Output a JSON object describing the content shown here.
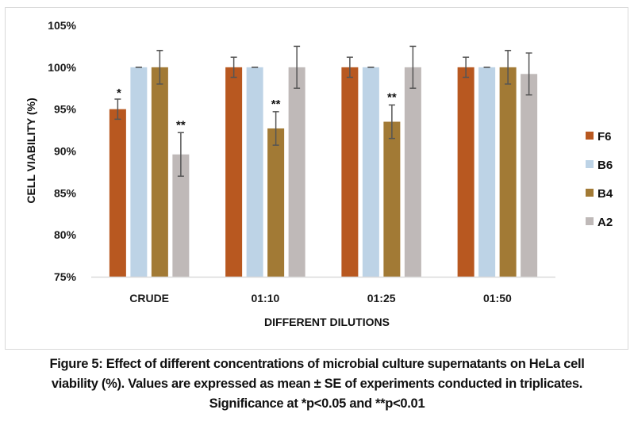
{
  "chart_data": {
    "type": "bar",
    "title": "",
    "xlabel": "DIFFERENT DILUTIONS",
    "ylabel": "CELL VIABILITY (%)",
    "ylim": [
      75,
      105
    ],
    "yticks": [
      75,
      80,
      85,
      90,
      95,
      100,
      105
    ],
    "ytick_labels": [
      "75%",
      "80%",
      "85%",
      "90%",
      "95%",
      "100%",
      "105%"
    ],
    "categories": [
      "CRUDE",
      "01:10",
      "01:25",
      "01:50"
    ],
    "grid": false,
    "legend_position": "right",
    "series": [
      {
        "name": "F6",
        "color": "#B85820",
        "values": [
          95.0,
          100.0,
          100.0,
          100.0
        ],
        "errors": [
          1.2,
          1.2,
          1.2,
          1.2
        ],
        "significance": [
          "*",
          "",
          "",
          ""
        ]
      },
      {
        "name": "B6",
        "color": "#BDD3E6",
        "values": [
          100.0,
          100.0,
          100.0,
          100.0
        ],
        "errors": [
          0,
          0,
          0,
          0
        ],
        "significance": [
          "",
          "",
          "",
          ""
        ]
      },
      {
        "name": "B4",
        "color": "#A27A35",
        "values": [
          100.0,
          92.7,
          93.5,
          100.0
        ],
        "errors": [
          2.0,
          2.0,
          2.0,
          2.0
        ],
        "significance": [
          "",
          "**",
          "**",
          ""
        ]
      },
      {
        "name": "A2",
        "color": "#BFB9B8",
        "values": [
          89.6,
          100.0,
          100.0,
          99.2
        ],
        "errors": [
          2.6,
          2.5,
          2.5,
          2.5
        ],
        "significance": [
          "**",
          "",
          "",
          ""
        ]
      }
    ]
  },
  "caption": {
    "line1": "Figure 5: Effect of different concentrations of microbial culture supernatants on HeLa cell",
    "line2": "viability (%). Values are expressed as mean ± SE of experiments conducted in triplicates.",
    "line3": "Significance at *p<0.05 and **p<0.01"
  }
}
